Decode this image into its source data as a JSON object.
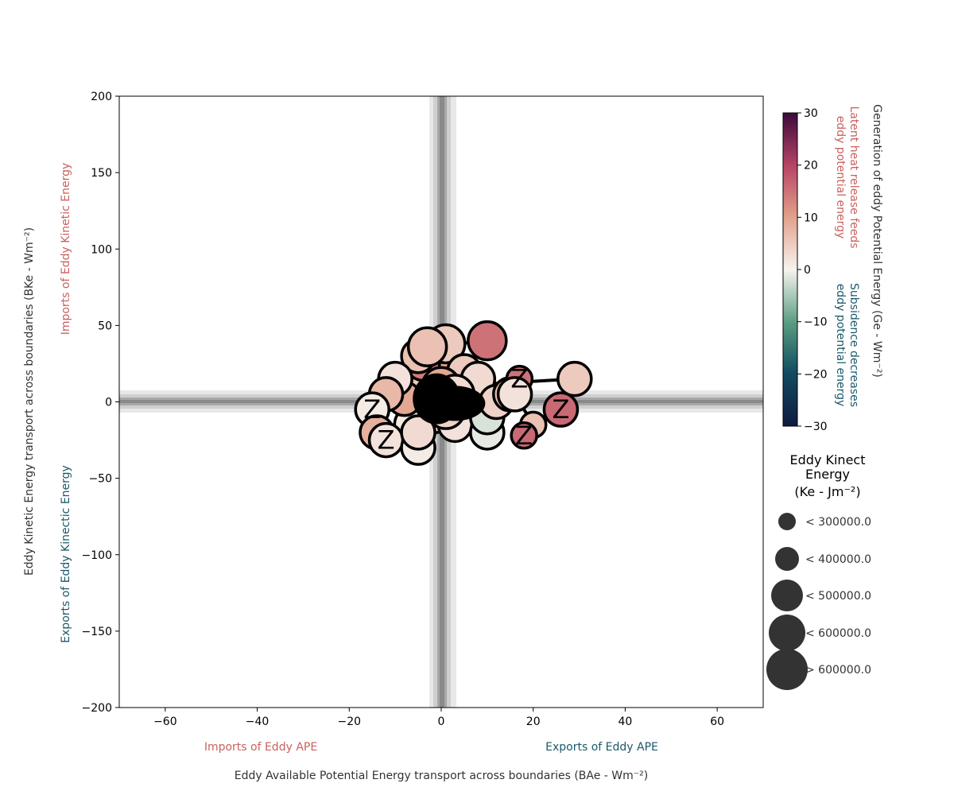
{
  "chart_data": {
    "type": "scatter",
    "xlabel": "Eddy Available Potential Energy transport across boundaries (BAe - Wm⁻²)",
    "ylabel": "Eddy Kinetic Energy transport across boundaries (BKe - Wm⁻²)",
    "xlim": [
      -70,
      70
    ],
    "ylim": [
      -200,
      200
    ],
    "x_ticks": [
      "−60",
      "−40",
      "−20",
      "0",
      "20",
      "40",
      "60"
    ],
    "y_ticks": [
      "200",
      "150",
      "100",
      "50",
      "0",
      "−50",
      "−100",
      "−150",
      "−200"
    ],
    "x_tick_values": [
      -60,
      -40,
      -20,
      0,
      20,
      40,
      60
    ],
    "y_tick_values": [
      200,
      150,
      100,
      50,
      0,
      -50,
      -100,
      -150,
      -200
    ],
    "quadrant_labels": {
      "imports_ke": "Imports of Eddy Kinetic Energy",
      "exports_ke": "Exports of Eddy Kinectic Energy",
      "imports_ape": "Imports of Eddy APE",
      "exports_ape": "Exports of Eddy APE"
    },
    "colorbar": {
      "label": "Generation of eddy Potential Energy (Ge - Wm⁻²)",
      "min": -30,
      "max": 30,
      "ticks": [
        "30",
        "20",
        "10",
        "0",
        "−10",
        "−20",
        "−30"
      ],
      "tick_values": [
        30,
        20,
        10,
        0,
        -10,
        -20,
        -30
      ],
      "upper_note": [
        "Latent heat release feeds",
        "eddy potential energy"
      ],
      "lower_note": [
        "Subsidence decreases",
        "eddy potential energy"
      ]
    },
    "size_legend": {
      "title": [
        "Eddy Kinect",
        "Energy",
        "(Ke - Jm⁻²)"
      ],
      "entries": [
        "< 300000.0",
        "< 400000.0",
        "< 500000.0",
        "< 600000.0",
        "> 600000.0"
      ]
    },
    "marker_label": "Z",
    "points": [
      {
        "x": -5,
        "y": 5,
        "ge": 8,
        "size": 3
      },
      {
        "x": -3,
        "y": 10,
        "ge": 5,
        "size": 4
      },
      {
        "x": 0,
        "y": 3,
        "ge": 12,
        "size": 3
      },
      {
        "x": 2,
        "y": -2,
        "ge": 3,
        "size": 4
      },
      {
        "x": -2,
        "y": -8,
        "ge": 2,
        "size": 4
      },
      {
        "x": 4,
        "y": 8,
        "ge": 7,
        "size": 3
      },
      {
        "x": -6,
        "y": -15,
        "ge": 1,
        "size": 4
      },
      {
        "x": -8,
        "y": 2,
        "ge": 9,
        "size": 3
      },
      {
        "x": 6,
        "y": 2,
        "ge": 4,
        "size": 3
      },
      {
        "x": 1,
        "y": 15,
        "ge": 10,
        "size": 4
      },
      {
        "x": -4,
        "y": 25,
        "ge": 14,
        "size": 3
      },
      {
        "x": -5,
        "y": 30,
        "ge": 6,
        "size": 3
      },
      {
        "x": 1,
        "y": 38,
        "ge": 5,
        "size": 4
      },
      {
        "x": -3,
        "y": 36,
        "ge": 6,
        "size": 4
      },
      {
        "x": 10,
        "y": 40,
        "ge": 15,
        "size": 4
      },
      {
        "x": 5,
        "y": 20,
        "ge": 5,
        "size": 3
      },
      {
        "x": 8,
        "y": 15,
        "ge": 3,
        "size": 3
      },
      {
        "x": -10,
        "y": 15,
        "ge": 2,
        "size": 3
      },
      {
        "x": -12,
        "y": 5,
        "ge": 7,
        "size": 3
      },
      {
        "x": -15,
        "y": -5,
        "ge": 1,
        "size": 3
      },
      {
        "x": -14,
        "y": -20,
        "ge": 8,
        "size": 3
      },
      {
        "x": -12,
        "y": -25,
        "ge": 2,
        "size": 3
      },
      {
        "x": -5,
        "y": -30,
        "ge": 1,
        "size": 3
      },
      {
        "x": -5,
        "y": -20,
        "ge": 3,
        "size": 3
      },
      {
        "x": 3,
        "y": -15,
        "ge": 2,
        "size": 3
      },
      {
        "x": 10,
        "y": -20,
        "ge": -1,
        "size": 3
      },
      {
        "x": 10,
        "y": -10,
        "ge": -2,
        "size": 3
      },
      {
        "x": 12,
        "y": 0,
        "ge": 4,
        "size": 3
      },
      {
        "x": 15,
        "y": 5,
        "ge": 6,
        "size": 3
      },
      {
        "x": 17,
        "y": 15,
        "ge": 15,
        "size": 2
      },
      {
        "x": 16,
        "y": 5,
        "ge": 2,
        "size": 3
      },
      {
        "x": 20,
        "y": -15,
        "ge": 6,
        "size": 2
      },
      {
        "x": 18,
        "y": -22,
        "ge": 16,
        "size": 2
      },
      {
        "x": 26,
        "y": -5,
        "ge": 16,
        "size": 3
      },
      {
        "x": 29,
        "y": 15,
        "ge": 5,
        "size": 3
      },
      {
        "x": 0,
        "y": 10,
        "ge": 9,
        "size": 4
      },
      {
        "x": -1,
        "y": 0,
        "ge": 6,
        "size": 4
      },
      {
        "x": 3,
        "y": 5,
        "ge": 3,
        "size": 4
      },
      {
        "x": 1,
        "y": -5,
        "ge": 4,
        "size": 4
      }
    ]
  }
}
